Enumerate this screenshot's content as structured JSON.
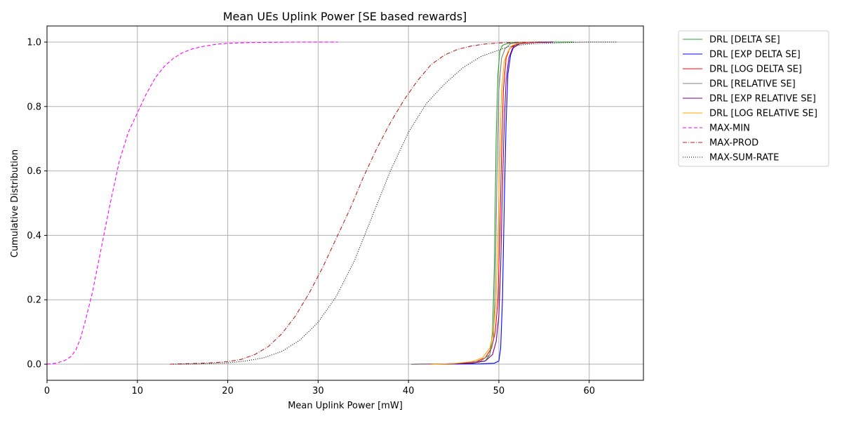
{
  "chart_data": {
    "type": "line",
    "title": "Mean UEs Uplink Power [SE based rewards]",
    "xlabel": "Mean Uplink Power [mW]",
    "ylabel": "Cumulative Distribution",
    "xlim": [
      0,
      66
    ],
    "ylim": [
      -0.05,
      1.05
    ],
    "xticks": [
      "0",
      "10",
      "20",
      "30",
      "40",
      "50",
      "60"
    ],
    "yticks": [
      "0.0",
      "0.2",
      "0.4",
      "0.6",
      "0.8",
      "1.0"
    ],
    "grid": true,
    "legend_position": "outside-right",
    "series": [
      {
        "name": "DRL [DELTA SE]",
        "color": "#2ca02c",
        "dash": "solid",
        "x": [
          40.3,
          44,
          46,
          47.5,
          48.5,
          49.0,
          49.3,
          49.5,
          49.7,
          49.9,
          50.1,
          50.4,
          51,
          52,
          54,
          58.3
        ],
        "y": [
          0,
          0.0005,
          0.002,
          0.005,
          0.01,
          0.03,
          0.1,
          0.3,
          0.7,
          0.9,
          0.97,
          0.99,
          0.996,
          0.999,
          1,
          1
        ]
      },
      {
        "name": "DRL [EXP DELTA SE]",
        "color": "#0000ff",
        "dash": "solid",
        "x": [
          40.3,
          45,
          48,
          49.5,
          50.0,
          50.2,
          50.4,
          50.6,
          50.8,
          51.0,
          51.3,
          51.7,
          52.5,
          54,
          56
        ],
        "y": [
          0,
          0.0005,
          0.001,
          0.003,
          0.01,
          0.05,
          0.2,
          0.5,
          0.75,
          0.9,
          0.96,
          0.99,
          0.997,
          0.999,
          1
        ]
      },
      {
        "name": "DRL [LOG DELTA SE]",
        "color": "#ff0000",
        "dash": "solid",
        "x": [
          40.3,
          44,
          46,
          47.5,
          48.5,
          49.2,
          49.6,
          49.9,
          50.1,
          50.3,
          50.5,
          50.8,
          51.2,
          52,
          54,
          56
        ],
        "y": [
          0,
          0.001,
          0.003,
          0.008,
          0.02,
          0.05,
          0.1,
          0.2,
          0.4,
          0.65,
          0.85,
          0.95,
          0.98,
          0.995,
          0.999,
          1
        ]
      },
      {
        "name": "DRL [RELATIVE SE]",
        "color": "#808080",
        "dash": "solid",
        "x": [
          40.3,
          44,
          46.5,
          48,
          49.0,
          49.4,
          49.6,
          49.8,
          50.0,
          50.3,
          50.7,
          51.3,
          52.5,
          54.5
        ],
        "y": [
          0,
          0.001,
          0.003,
          0.01,
          0.03,
          0.08,
          0.25,
          0.6,
          0.85,
          0.95,
          0.98,
          0.995,
          0.999,
          1
        ]
      },
      {
        "name": "DRL [EXP RELATIVE SE]",
        "color": "#800080",
        "dash": "solid",
        "x": [
          42.5,
          45,
          47,
          48.5,
          49.3,
          49.7,
          50.0,
          50.2,
          50.4,
          50.6,
          50.8,
          51.1,
          51.5,
          52.3,
          54,
          56
        ],
        "y": [
          0,
          0.001,
          0.003,
          0.01,
          0.03,
          0.07,
          0.15,
          0.3,
          0.55,
          0.75,
          0.88,
          0.95,
          0.98,
          0.995,
          0.999,
          1
        ]
      },
      {
        "name": "DRL [LOG RELATIVE SE]",
        "color": "#ffa500",
        "dash": "solid",
        "x": [
          42.5,
          45,
          47,
          48.2,
          49.0,
          49.4,
          49.7,
          49.9,
          50.1,
          50.3,
          50.6,
          51,
          51.5,
          52.5,
          54
        ],
        "y": [
          0,
          0.002,
          0.008,
          0.02,
          0.05,
          0.1,
          0.2,
          0.4,
          0.65,
          0.85,
          0.94,
          0.97,
          0.99,
          0.998,
          1
        ]
      },
      {
        "name": "MAX-MIN",
        "color": "#ff00ff",
        "dash": "5,3",
        "x": [
          0,
          1,
          2,
          2.7,
          3.2,
          3.7,
          4.2,
          5,
          6,
          7,
          8,
          9,
          10,
          11,
          12,
          13,
          14,
          15,
          16,
          17,
          18,
          19,
          20,
          22,
          24,
          26,
          28,
          30,
          32.2
        ],
        "y": [
          0,
          0.003,
          0.012,
          0.025,
          0.045,
          0.08,
          0.13,
          0.22,
          0.36,
          0.5,
          0.63,
          0.72,
          0.78,
          0.84,
          0.89,
          0.925,
          0.95,
          0.967,
          0.978,
          0.985,
          0.99,
          0.994,
          0.996,
          0.998,
          0.999,
          0.9995,
          1,
          1,
          1
        ]
      },
      {
        "name": "MAX-PROD",
        "color": "#b22222",
        "dash": "6,2,1,2",
        "x": [
          13.6,
          16,
          18,
          20,
          21.5,
          23,
          24.5,
          26,
          27.5,
          29,
          30.5,
          32,
          33.5,
          35,
          36.5,
          38,
          39.5,
          41,
          42.5,
          44,
          45.5,
          47,
          48.5,
          50,
          51.5,
          53,
          55
        ],
        "y": [
          0,
          0.002,
          0.004,
          0.008,
          0.015,
          0.03,
          0.055,
          0.095,
          0.15,
          0.22,
          0.3,
          0.39,
          0.48,
          0.58,
          0.67,
          0.75,
          0.82,
          0.88,
          0.93,
          0.96,
          0.978,
          0.988,
          0.994,
          0.997,
          0.999,
          0.9995,
          1
        ]
      },
      {
        "name": "MAX-SUM-RATE",
        "color": "#000000",
        "dash": "1,2",
        "x": [
          14,
          17,
          20,
          22,
          24,
          26,
          28,
          30,
          32,
          34,
          36,
          38,
          40,
          42,
          44,
          46,
          48,
          50,
          51,
          52,
          54,
          56,
          58,
          60,
          63
        ],
        "y": [
          0,
          0.001,
          0.004,
          0.01,
          0.02,
          0.04,
          0.075,
          0.13,
          0.21,
          0.32,
          0.46,
          0.6,
          0.72,
          0.81,
          0.87,
          0.92,
          0.955,
          0.975,
          0.985,
          0.99,
          0.995,
          0.997,
          0.999,
          1,
          1
        ]
      }
    ]
  }
}
